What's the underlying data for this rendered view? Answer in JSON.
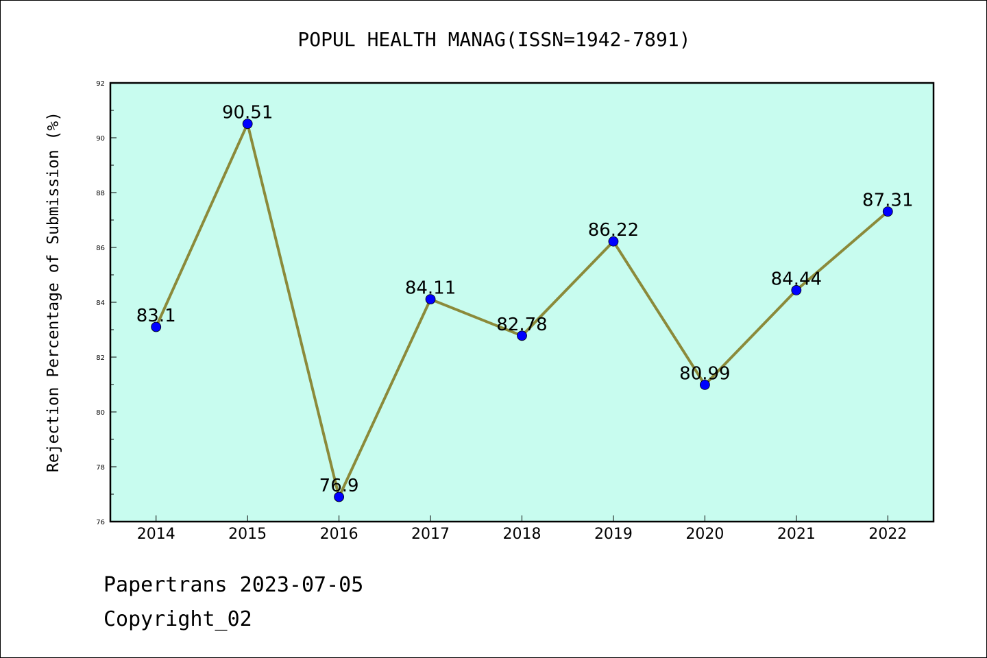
{
  "chart_data": {
    "type": "line",
    "title": "POPUL HEALTH MANAG(ISSN=1942-7891)",
    "xlabel": "",
    "ylabel": "Rejection Percentage of Submission (%)",
    "categories": [
      "2014",
      "2015",
      "2016",
      "2017",
      "2018",
      "2019",
      "2020",
      "2021",
      "2022"
    ],
    "series": [
      {
        "values": [
          83.1,
          90.51,
          76.9,
          84.11,
          82.78,
          86.22,
          80.99,
          84.44,
          87.31
        ],
        "labels": [
          "83.1",
          "90.51",
          "76.9",
          "84.11",
          "82.78",
          "86.22",
          "80.99",
          "84.44",
          "87.31"
        ],
        "line_color": "#8b8a3a",
        "marker_color": "#0000ff"
      }
    ],
    "ylim": [
      76,
      92
    ],
    "yticks": [
      "76",
      "78",
      "80",
      "82",
      "84",
      "86",
      "88",
      "90",
      "92"
    ],
    "grid": false,
    "legend": "none",
    "plot_background": "#c8fcef"
  },
  "footer": {
    "source": "Papertrans 2023-07-05",
    "copyright": "Copyright_02"
  }
}
